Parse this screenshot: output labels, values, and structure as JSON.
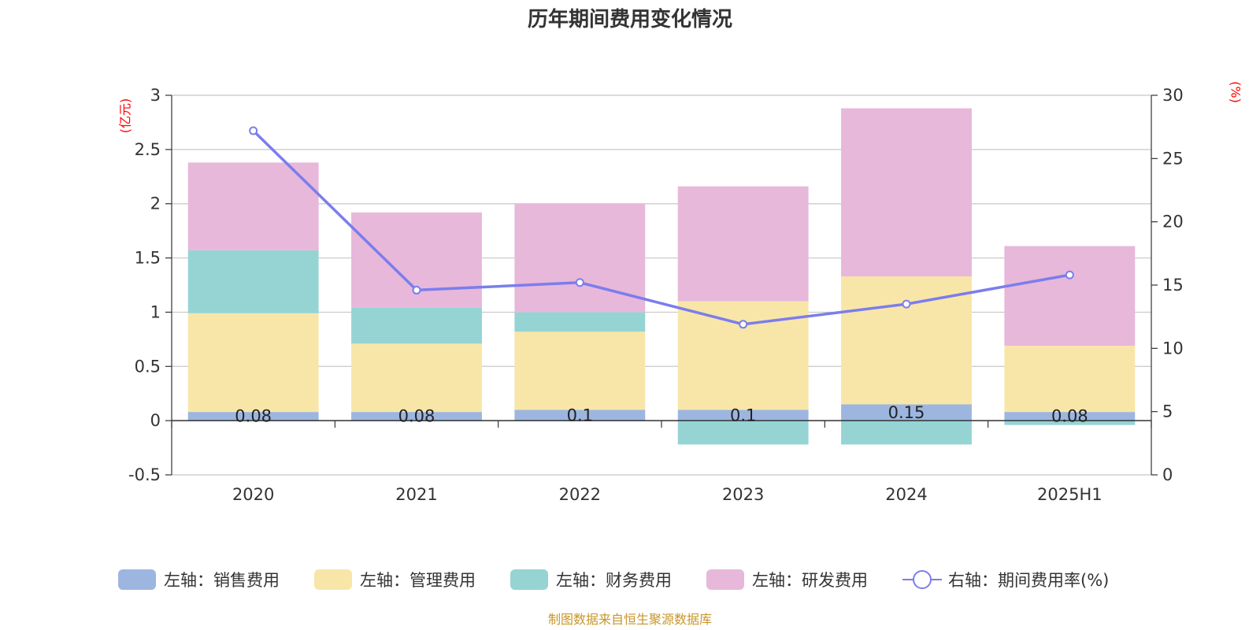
{
  "chart_data": {
    "type": "bar",
    "stacked": true,
    "title": "历年期间费用变化情况",
    "categories": [
      "2020",
      "2021",
      "2022",
      "2023",
      "2024",
      "2025H1"
    ],
    "y_left": {
      "unit": "(亿元)",
      "ylim": [
        -0.5,
        3
      ],
      "ticks": [
        "3",
        "2.5",
        "2",
        "1.5",
        "1",
        "0.5",
        "0",
        "-0.5"
      ],
      "tick_values": [
        3,
        2.5,
        2,
        1.5,
        1,
        0.5,
        0,
        -0.5
      ]
    },
    "y_right": {
      "unit": "(%)",
      "ylim": [
        0,
        30
      ],
      "ticks": [
        "30",
        "25",
        "20",
        "15",
        "10",
        "5",
        "0"
      ],
      "tick_values": [
        30,
        25,
        20,
        15,
        10,
        5,
        0
      ]
    },
    "series": [
      {
        "name": "左轴：销售费用",
        "axis": "left",
        "color": "#9db6e0",
        "values": [
          0.08,
          0.08,
          0.1,
          0.1,
          0.15,
          0.08
        ],
        "labels": [
          "0.08",
          "0.08",
          "0.1",
          "0.1",
          "0.15",
          "0.08"
        ]
      },
      {
        "name": "左轴：管理费用",
        "axis": "left",
        "color": "#f8e6a8",
        "values": [
          0.91,
          0.63,
          0.72,
          1.0,
          1.18,
          0.61
        ]
      },
      {
        "name": "左轴：财务费用",
        "axis": "left",
        "color": "#96d4d4",
        "values": [
          0.58,
          0.33,
          0.18,
          -0.22,
          -0.22,
          -0.04
        ]
      },
      {
        "name": "左轴：研发费用",
        "axis": "left",
        "color": "#e7b8da",
        "values": [
          0.81,
          0.88,
          1.0,
          1.06,
          1.55,
          0.92
        ]
      },
      {
        "name": "右轴：期间费用率(%)",
        "axis": "right",
        "type": "line",
        "color": "#7b7ded",
        "values": [
          27.2,
          14.6,
          15.2,
          11.9,
          13.5,
          15.8
        ]
      }
    ],
    "grid": true,
    "legend_position": "bottom",
    "source": "制图数据来自恒生聚源数据库"
  }
}
